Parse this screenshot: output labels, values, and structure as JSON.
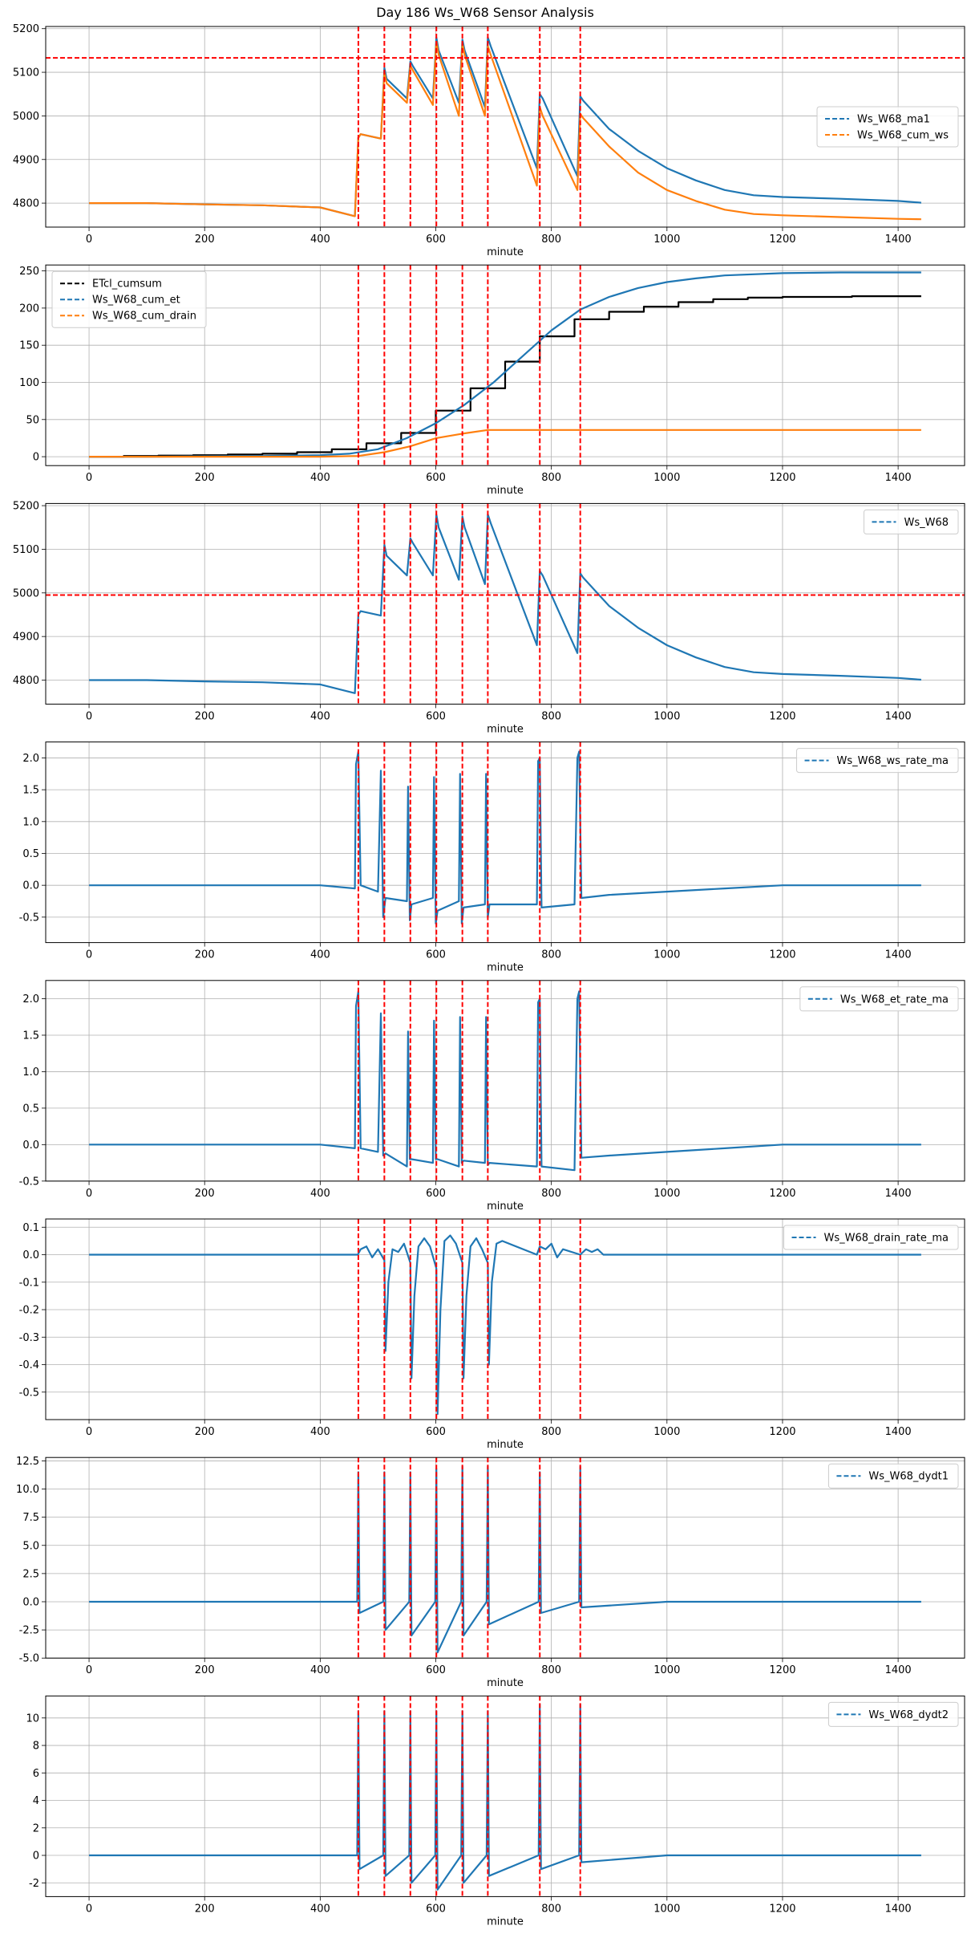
{
  "figure_title": "Day 186 Ws_W68 Sensor Analysis",
  "colors": {
    "blue": "#1f77b4",
    "orange": "#ff7f0e",
    "black": "#000000",
    "red": "#ff0000",
    "grid": "#b0b0b0"
  },
  "event_lines_x": [
    466,
    511,
    556,
    601,
    646,
    690,
    780,
    850
  ],
  "chart_data": [
    {
      "type": "line",
      "title": "",
      "xlabel": "minute",
      "xlim": [
        -75,
        1515
      ],
      "ylim": [
        4745,
        5205
      ],
      "xticks": [
        0,
        200,
        400,
        600,
        800,
        1000,
        1200,
        1400
      ],
      "yticks": [
        4800,
        4900,
        5000,
        5100,
        5200
      ],
      "ytick_labels": [
        "4800",
        "4900",
        "5000",
        "5100",
        "5200"
      ],
      "grid": true,
      "legend_position": "center-right",
      "hline": 5133,
      "series": [
        {
          "name": "Ws_W68_ma1",
          "color": "#1f77b4",
          "x": [
            0,
            100,
            200,
            300,
            400,
            460,
            466,
            470,
            505,
            511,
            515,
            550,
            556,
            560,
            595,
            601,
            605,
            640,
            646,
            650,
            685,
            690,
            695,
            775,
            780,
            785,
            845,
            850,
            855,
            900,
            950,
            1000,
            1050,
            1100,
            1150,
            1200,
            1300,
            1400,
            1440
          ],
          "y": [
            4800,
            4800,
            4797,
            4795,
            4790,
            4770,
            4950,
            4958,
            4948,
            5110,
            5085,
            5040,
            5125,
            5115,
            5040,
            5180,
            5150,
            5030,
            5175,
            5150,
            5020,
            5180,
            5160,
            4880,
            5050,
            5040,
            4862,
            5045,
            5035,
            4970,
            4920,
            4880,
            4852,
            4830,
            4818,
            4814,
            4810,
            4805,
            4801
          ]
        },
        {
          "name": "Ws_W68_cum_ws",
          "color": "#ff7f0e",
          "x": [
            0,
            100,
            200,
            300,
            400,
            460,
            466,
            470,
            505,
            511,
            515,
            550,
            556,
            560,
            595,
            601,
            605,
            640,
            646,
            650,
            685,
            690,
            695,
            775,
            780,
            785,
            845,
            850,
            855,
            900,
            950,
            1000,
            1050,
            1100,
            1150,
            1200,
            1300,
            1400,
            1440
          ],
          "y": [
            4800,
            4800,
            4797,
            4795,
            4790,
            4770,
            4950,
            4958,
            4948,
            5100,
            5075,
            5030,
            5115,
            5105,
            5025,
            5170,
            5140,
            5000,
            5165,
            5140,
            5000,
            5160,
            5140,
            4840,
            5020,
            5000,
            4830,
            5005,
            4995,
            4930,
            4870,
            4830,
            4805,
            4785,
            4775,
            4772,
            4768,
            4764,
            4763
          ]
        }
      ]
    },
    {
      "type": "line",
      "title": "",
      "xlabel": "minute",
      "xlim": [
        -75,
        1515
      ],
      "ylim": [
        -12,
        258
      ],
      "xticks": [
        0,
        200,
        400,
        600,
        800,
        1000,
        1200,
        1400
      ],
      "yticks": [
        0,
        50,
        100,
        150,
        200,
        250
      ],
      "ytick_labels": [
        "0",
        "50",
        "100",
        "150",
        "200",
        "250"
      ],
      "grid": true,
      "legend_position": "top-left",
      "series": [
        {
          "name": "ETcl_cumsum",
          "color": "#000000",
          "step": true,
          "x": [
            0,
            60,
            120,
            180,
            240,
            300,
            360,
            420,
            480,
            540,
            600,
            660,
            720,
            780,
            840,
            900,
            960,
            1020,
            1080,
            1140,
            1200,
            1260,
            1320,
            1380,
            1440
          ],
          "y": [
            0,
            1,
            1.5,
            2,
            3,
            4,
            6,
            10,
            18,
            32,
            62,
            92,
            128,
            162,
            185,
            195,
            202,
            208,
            212,
            214,
            215,
            215,
            216,
            216,
            216
          ]
        },
        {
          "name": "Ws_W68_cum_et",
          "color": "#1f77b4",
          "x": [
            0,
            100,
            200,
            300,
            400,
            450,
            500,
            550,
            600,
            650,
            700,
            750,
            800,
            850,
            900,
            950,
            1000,
            1050,
            1100,
            1200,
            1300,
            1400,
            1440
          ],
          "y": [
            0,
            0,
            0.5,
            1,
            2,
            4,
            10,
            25,
            45,
            70,
            100,
            135,
            170,
            198,
            215,
            227,
            235,
            240,
            244,
            247,
            248,
            248,
            248
          ]
        },
        {
          "name": "Ws_W68_cum_drain",
          "color": "#ff7f0e",
          "x": [
            0,
            100,
            200,
            300,
            400,
            466,
            511,
            556,
            601,
            646,
            690,
            780,
            850,
            1000,
            1200,
            1440
          ],
          "y": [
            0,
            0,
            0,
            0,
            0,
            1,
            6,
            14,
            25,
            31,
            36,
            36,
            36,
            36,
            36,
            36
          ]
        }
      ]
    },
    {
      "type": "line",
      "title": "",
      "xlabel": "minute",
      "xlim": [
        -75,
        1515
      ],
      "ylim": [
        4745,
        5205
      ],
      "xticks": [
        0,
        200,
        400,
        600,
        800,
        1000,
        1200,
        1400
      ],
      "yticks": [
        4800,
        4900,
        5000,
        5100,
        5200
      ],
      "ytick_labels": [
        "4800",
        "4900",
        "5000",
        "5100",
        "5200"
      ],
      "grid": true,
      "legend_position": "top-right",
      "hline": 4995,
      "series": [
        {
          "name": "Ws_W68",
          "color": "#1f77b4",
          "x": [
            0,
            100,
            200,
            300,
            400,
            460,
            466,
            470,
            505,
            511,
            515,
            550,
            556,
            560,
            595,
            601,
            605,
            640,
            646,
            650,
            685,
            690,
            695,
            775,
            780,
            785,
            845,
            850,
            855,
            900,
            950,
            1000,
            1050,
            1100,
            1150,
            1200,
            1300,
            1400,
            1440
          ],
          "y": [
            4800,
            4800,
            4797,
            4795,
            4790,
            4770,
            4950,
            4958,
            4948,
            5110,
            5085,
            5040,
            5125,
            5115,
            5040,
            5180,
            5150,
            5030,
            5175,
            5150,
            5020,
            5180,
            5160,
            4880,
            5050,
            5040,
            4862,
            5045,
            5035,
            4970,
            4920,
            4880,
            4852,
            4830,
            4818,
            4814,
            4810,
            4805,
            4801
          ]
        }
      ]
    },
    {
      "type": "line",
      "title": "",
      "xlabel": "minute",
      "xlim": [
        -75,
        1515
      ],
      "ylim": [
        -0.9,
        2.25
      ],
      "xticks": [
        0,
        200,
        400,
        600,
        800,
        1000,
        1200,
        1400
      ],
      "yticks": [
        -0.5,
        0.0,
        0.5,
        1.0,
        1.5,
        2.0
      ],
      "ytick_labels": [
        "-0.5",
        "0.0",
        "0.5",
        "1.0",
        "1.5",
        "2.0"
      ],
      "grid": true,
      "legend_position": "top-right",
      "series": [
        {
          "name": "Ws_W68_ws_rate_ma",
          "color": "#1f77b4",
          "x": [
            0,
            200,
            400,
            460,
            462,
            466,
            470,
            500,
            505,
            509,
            513,
            550,
            552,
            555,
            558,
            595,
            597,
            600,
            603,
            640,
            642,
            645,
            648,
            685,
            687,
            690,
            693,
            775,
            777,
            780,
            783,
            840,
            845,
            848,
            852,
            900,
            1000,
            1100,
            1200,
            1440
          ],
          "y": [
            0,
            0,
            0,
            -0.05,
            1.9,
            2.1,
            0,
            -0.1,
            1.8,
            -0.5,
            -0.2,
            -0.25,
            1.55,
            -0.55,
            -0.3,
            -0.2,
            1.7,
            -0.6,
            -0.4,
            -0.25,
            1.75,
            -0.6,
            -0.35,
            -0.3,
            1.75,
            -0.5,
            -0.3,
            -0.3,
            1.95,
            2.0,
            -0.35,
            -0.3,
            2.0,
            2.1,
            -0.2,
            -0.15,
            -0.1,
            -0.05,
            0,
            0
          ]
        }
      ]
    },
    {
      "type": "line",
      "title": "",
      "xlabel": "minute",
      "xlim": [
        -75,
        1515
      ],
      "ylim": [
        -0.5,
        2.25
      ],
      "xticks": [
        0,
        200,
        400,
        600,
        800,
        1000,
        1200,
        1400
      ],
      "yticks": [
        -0.5,
        0.0,
        0.5,
        1.0,
        1.5,
        2.0
      ],
      "ytick_labels": [
        "-0.5",
        "0.0",
        "0.5",
        "1.0",
        "1.5",
        "2.0"
      ],
      "grid": true,
      "legend_position": "top-right",
      "series": [
        {
          "name": "Ws_W68_et_rate_ma",
          "color": "#1f77b4",
          "x": [
            0,
            200,
            400,
            460,
            462,
            466,
            470,
            500,
            505,
            509,
            513,
            550,
            552,
            555,
            558,
            595,
            597,
            600,
            603,
            640,
            642,
            645,
            648,
            685,
            687,
            690,
            693,
            775,
            777,
            780,
            783,
            840,
            845,
            848,
            852,
            900,
            1000,
            1100,
            1200,
            1440
          ],
          "y": [
            0,
            0,
            0,
            -0.05,
            1.9,
            2.1,
            -0.05,
            -0.1,
            1.8,
            -0.15,
            -0.12,
            -0.3,
            1.55,
            -0.2,
            -0.2,
            -0.25,
            1.7,
            -0.2,
            -0.2,
            -0.3,
            1.75,
            -0.25,
            -0.22,
            -0.25,
            1.75,
            -0.28,
            -0.25,
            -0.3,
            1.95,
            2.0,
            -0.3,
            -0.35,
            2.0,
            2.1,
            -0.18,
            -0.15,
            -0.1,
            -0.05,
            0,
            0
          ]
        }
      ]
    },
    {
      "type": "line",
      "title": "",
      "xlabel": "minute",
      "xlim": [
        -75,
        1515
      ],
      "ylim": [
        -0.6,
        0.13
      ],
      "xticks": [
        0,
        200,
        400,
        600,
        800,
        1000,
        1200,
        1400
      ],
      "yticks": [
        -0.5,
        -0.4,
        -0.3,
        -0.2,
        -0.1,
        0.0,
        0.1
      ],
      "ytick_labels": [
        "-0.5",
        "-0.4",
        "-0.3",
        "-0.2",
        "-0.1",
        "0.0",
        "0.1"
      ],
      "grid": true,
      "legend_position": "top-right",
      "series": [
        {
          "name": "Ws_W68_drain_rate_ma",
          "color": "#1f77b4",
          "x": [
            0,
            465,
            470,
            480,
            490,
            500,
            511,
            513,
            518,
            525,
            535,
            545,
            556,
            558,
            563,
            570,
            580,
            590,
            601,
            603,
            608,
            615,
            625,
            635,
            646,
            648,
            653,
            660,
            670,
            680,
            690,
            692,
            697,
            705,
            715,
            775,
            780,
            790,
            800,
            810,
            820,
            850,
            860,
            870,
            880,
            890,
            1440
          ],
          "y": [
            0,
            0,
            0.02,
            0.03,
            -0.01,
            0.02,
            -0.02,
            -0.35,
            -0.1,
            0.02,
            0.01,
            0.04,
            -0.03,
            -0.45,
            -0.15,
            0.03,
            0.06,
            0.03,
            -0.05,
            -0.58,
            -0.2,
            0.05,
            0.07,
            0.04,
            -0.03,
            -0.45,
            -0.15,
            0.03,
            0.06,
            0.02,
            -0.03,
            -0.4,
            -0.1,
            0.04,
            0.05,
            0,
            0.03,
            0.02,
            0.04,
            -0.01,
            0.02,
            0,
            0.02,
            0.01,
            0.02,
            0,
            0
          ]
        }
      ]
    },
    {
      "type": "line",
      "title": "",
      "xlabel": "minute",
      "xlim": [
        -75,
        1515
      ],
      "ylim": [
        -5.0,
        12.8
      ],
      "xticks": [
        0,
        200,
        400,
        600,
        800,
        1000,
        1200,
        1400
      ],
      "yticks": [
        -5.0,
        -2.5,
        0.0,
        2.5,
        5.0,
        7.5,
        10.0,
        12.5
      ],
      "ytick_labels": [
        "-5.0",
        "-2.5",
        "0.0",
        "2.5",
        "5.0",
        "7.5",
        "10.0",
        "12.5"
      ],
      "grid": true,
      "legend_position": "top-right",
      "series": [
        {
          "name": "Ws_W68_dydt1",
          "color": "#1f77b4",
          "x": [
            0,
            200,
            400,
            464,
            466,
            468,
            509,
            511,
            513,
            554,
            556,
            558,
            599,
            601,
            603,
            644,
            646,
            648,
            688,
            690,
            692,
            778,
            780,
            782,
            848,
            850,
            852,
            1000,
            1200,
            1440
          ],
          "y": [
            0,
            0,
            0,
            0,
            11.5,
            -1,
            0,
            11.5,
            -2.5,
            0,
            11.5,
            -3,
            0,
            11.8,
            -4.5,
            0,
            12,
            -3,
            0,
            12,
            -2,
            0,
            11.5,
            -1,
            0,
            12,
            -0.5,
            0,
            0,
            0
          ]
        }
      ]
    },
    {
      "type": "line",
      "title": "",
      "xlabel": "minute",
      "xlim": [
        -75,
        1515
      ],
      "ylim": [
        -3.0,
        11.6
      ],
      "xticks": [
        0,
        200,
        400,
        600,
        800,
        1000,
        1200,
        1400
      ],
      "yticks": [
        -2,
        0,
        2,
        4,
        6,
        8,
        10
      ],
      "ytick_labels": [
        "-2",
        "0",
        "2",
        "4",
        "6",
        "8",
        "10"
      ],
      "grid": true,
      "legend_position": "top-right",
      "series": [
        {
          "name": "Ws_W68_dydt2",
          "color": "#1f77b4",
          "x": [
            0,
            200,
            400,
            464,
            466,
            468,
            509,
            511,
            513,
            554,
            556,
            558,
            599,
            601,
            603,
            644,
            646,
            648,
            688,
            690,
            692,
            778,
            780,
            782,
            848,
            850,
            852,
            1000,
            1200,
            1440
          ],
          "y": [
            0,
            0,
            0,
            0,
            10.5,
            -1,
            0,
            10.5,
            -1.5,
            0,
            10.5,
            -2,
            0,
            10.5,
            -2.5,
            0,
            10.5,
            -2,
            0,
            10.5,
            -1.5,
            0,
            11,
            -1,
            0,
            11,
            -0.5,
            0,
            0,
            0
          ]
        }
      ]
    }
  ]
}
